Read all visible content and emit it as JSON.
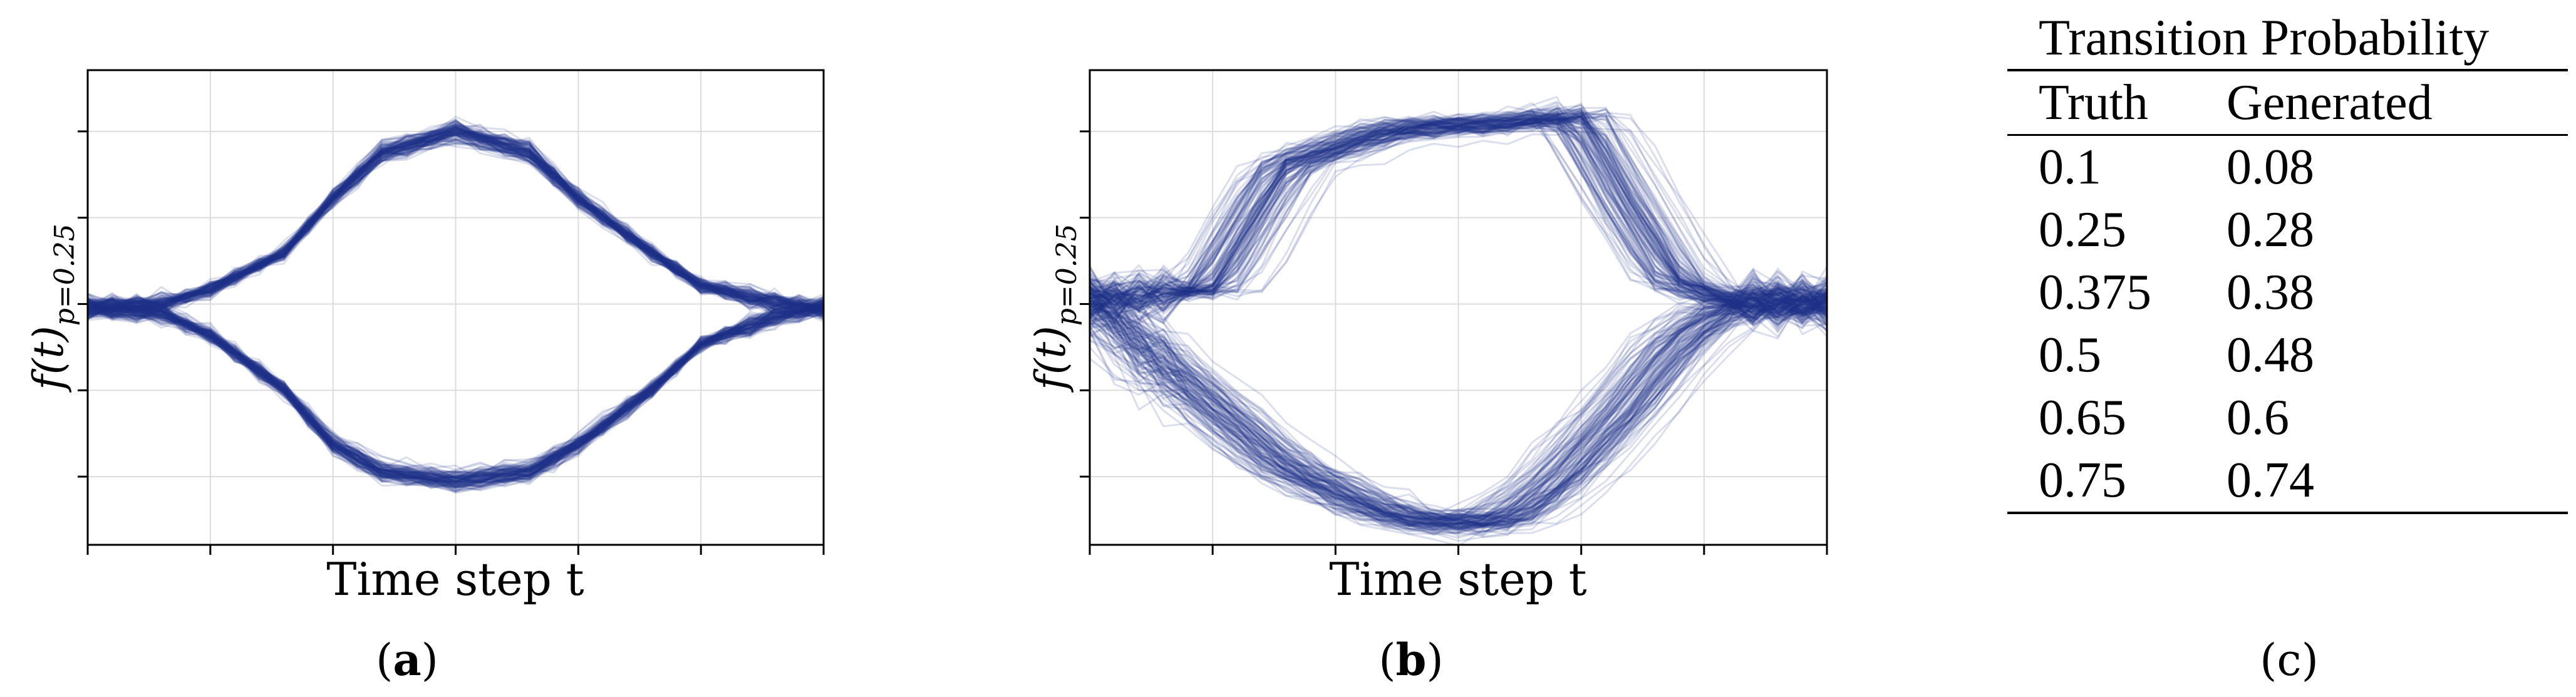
{
  "chart_data": [
    {
      "panel": "a",
      "type": "line",
      "caption": "(a)",
      "xlabel": "Time step t",
      "ylabel_main": "f(t)",
      "ylabel_sub": "p=0.25",
      "xlim": [
        0,
        30
      ],
      "ylim": [
        -1.3,
        1.3
      ],
      "grid": true,
      "n_samples": 120,
      "series": [
        {
          "name": "upper-branch",
          "x": [
            0,
            3,
            5,
            8,
            10,
            12,
            15,
            18,
            20,
            23,
            25,
            28,
            30
          ],
          "values": [
            0.0,
            0.02,
            0.1,
            0.3,
            0.6,
            0.85,
            0.97,
            0.85,
            0.6,
            0.3,
            0.12,
            0.03,
            0.0
          ]
        },
        {
          "name": "lower-branch",
          "x": [
            0,
            3,
            5,
            8,
            10,
            12,
            15,
            18,
            20,
            23,
            25,
            28,
            30
          ],
          "values": [
            0.0,
            -0.03,
            -0.15,
            -0.45,
            -0.75,
            -0.9,
            -0.95,
            -0.9,
            -0.75,
            -0.45,
            -0.2,
            -0.05,
            0.0
          ]
        }
      ]
    },
    {
      "panel": "b",
      "type": "line",
      "caption": "(b)",
      "xlabel": "Time step t",
      "ylabel_main": "f(t)",
      "ylabel_sub": "p=0.25",
      "xlim": [
        0,
        30
      ],
      "ylim": [
        -1.4,
        1.3
      ],
      "grid": true,
      "n_samples": 120,
      "series": [
        {
          "name": "upper-branch",
          "x": [
            0,
            5,
            8,
            12,
            14,
            17,
            20,
            22,
            24,
            26,
            28,
            30
          ],
          "values": [
            0.0,
            0.05,
            0.75,
            0.95,
            0.98,
            1.0,
            1.05,
            0.55,
            0.1,
            0.0,
            -0.02,
            -0.02
          ]
        },
        {
          "name": "lower-branch",
          "x": [
            0,
            2,
            5,
            8,
            11,
            13,
            15,
            17,
            19,
            22,
            24,
            26,
            28,
            30
          ],
          "values": [
            0.0,
            -0.25,
            -0.6,
            -0.95,
            -1.15,
            -1.25,
            -1.28,
            -1.25,
            -1.05,
            -0.6,
            -0.25,
            -0.05,
            -0.02,
            -0.02
          ]
        }
      ]
    }
  ],
  "table_c": {
    "title": "Transition Probability",
    "headers": [
      "Truth",
      "Generated"
    ],
    "rows": [
      [
        "0.1",
        "0.08"
      ],
      [
        "0.25",
        "0.28"
      ],
      [
        "0.375",
        "0.38"
      ],
      [
        "0.5",
        "0.48"
      ],
      [
        "0.65",
        "0.6"
      ],
      [
        "0.75",
        "0.74"
      ]
    ],
    "caption": "(c)"
  },
  "colors": {
    "line": "#1f2f8a",
    "grid": "#dcdcdc",
    "axis": "#000000"
  }
}
